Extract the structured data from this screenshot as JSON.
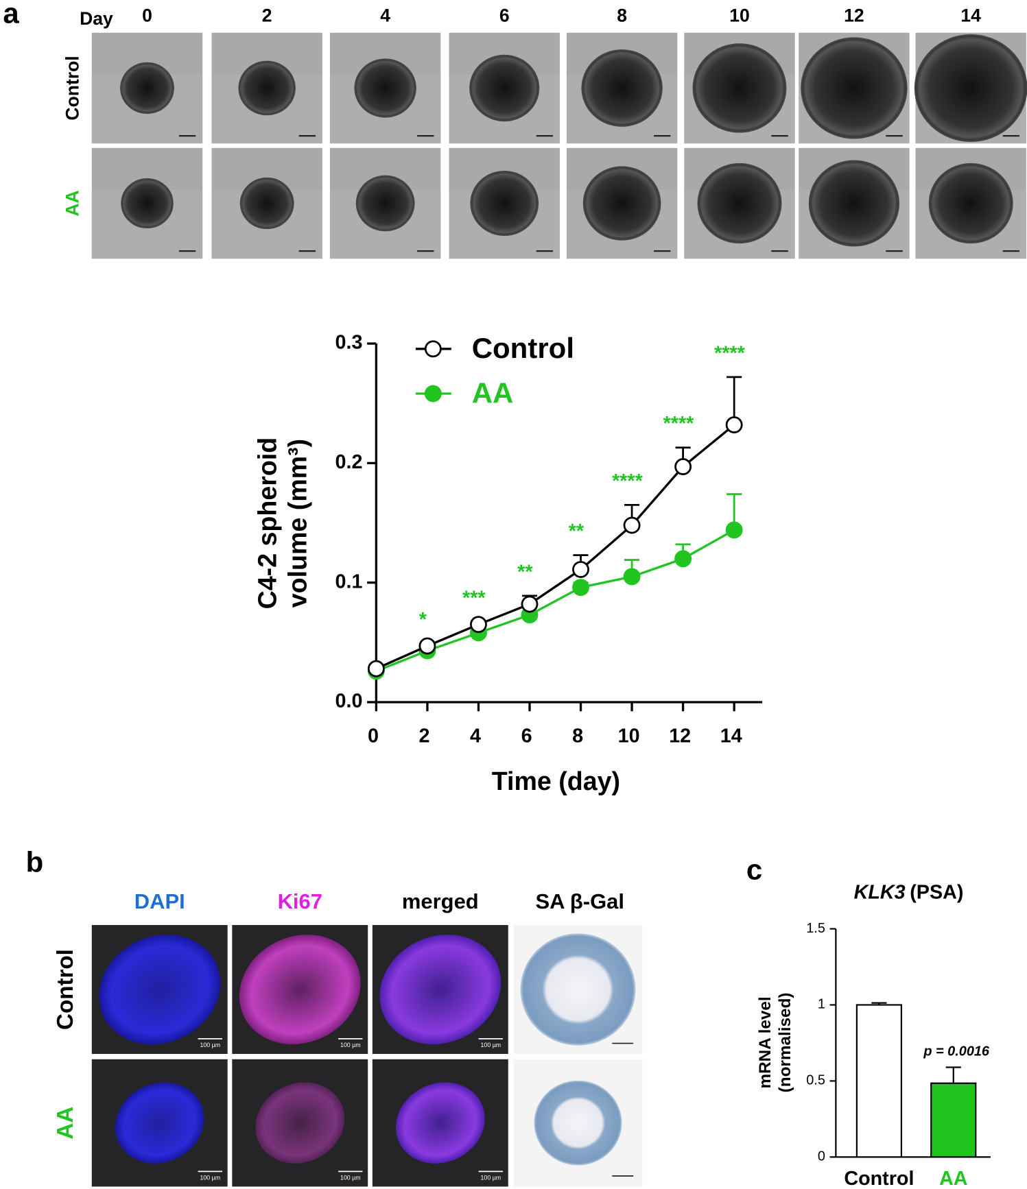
{
  "panel_a": {
    "label": "a",
    "day_label": "Day",
    "days": [
      "0",
      "2",
      "4",
      "6",
      "8",
      "10",
      "12",
      "14"
    ],
    "rows": [
      "Control",
      "AA"
    ]
  },
  "panel_b": {
    "label": "b",
    "columns": [
      "DAPI",
      "Ki67",
      "merged",
      "SA β-Gal"
    ],
    "column_colors": [
      "#1f6fd0",
      "#e020e0",
      "#000000",
      "#000000"
    ],
    "rows": [
      "Control",
      "AA"
    ],
    "scale_bar_label": "100 µm"
  },
  "panel_c": {
    "label": "c"
  },
  "chart_data": [
    {
      "type": "line",
      "x": [
        0,
        2,
        4,
        6,
        8,
        10,
        12,
        14
      ],
      "series": [
        {
          "name": "Control",
          "color": "#000000",
          "marker": "open",
          "values": [
            0.028,
            0.047,
            0.065,
            0.082,
            0.111,
            0.148,
            0.197,
            0.232
          ],
          "errors": [
            0.002,
            0.002,
            0.002,
            0.007,
            0.012,
            0.017,
            0.016,
            0.04
          ]
        },
        {
          "name": "AA",
          "color": "#22c422",
          "marker": "filled",
          "values": [
            0.026,
            0.043,
            0.058,
            0.073,
            0.096,
            0.105,
            0.12,
            0.144
          ],
          "errors": [
            0.002,
            0.002,
            0.002,
            0.003,
            0.004,
            0.014,
            0.012,
            0.03
          ]
        }
      ],
      "annotations": [
        null,
        "*",
        "***",
        "**",
        "**",
        "****",
        "****",
        "****"
      ],
      "annotation_color": "#22c422",
      "xlim": [
        0,
        15.1
      ],
      "ylim": [
        0,
        0.3
      ],
      "xticks": [
        0,
        2,
        4,
        6,
        8,
        10,
        12,
        14
      ],
      "yticks": [
        {
          "value": 0,
          "label": "0.0"
        },
        0.1,
        0.2,
        0.3
      ],
      "x_label": "Time (day)",
      "y_label": [
        "C4-2 spheroid",
        "volume (mm³)"
      ]
    },
    {
      "type": "bar",
      "title": [
        "KLK3",
        "(PSA)"
      ],
      "categories": [
        "Control",
        "AA"
      ],
      "values": [
        1.0,
        0.485
      ],
      "errors": [
        0.013,
        0.105
      ],
      "colors": [
        "#ffffff",
        "#22c422"
      ],
      "category_colors": [
        "#000000",
        "#22c422"
      ],
      "ylim": [
        0,
        1.5
      ],
      "yticks": [
        0,
        0.5,
        1,
        1.5
      ],
      "y_label": [
        "mRNA level",
        "(normalised)"
      ],
      "annotation": "p = 0.0016"
    }
  ]
}
